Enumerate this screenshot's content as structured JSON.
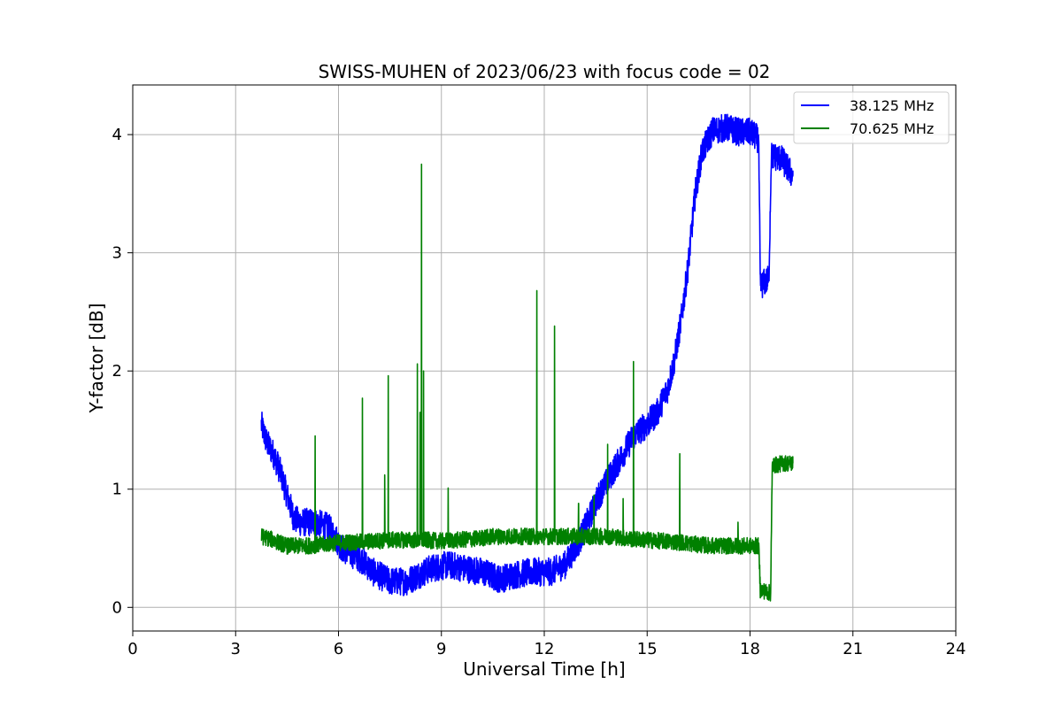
{
  "chart_data": {
    "type": "line",
    "title": "SWISS-MUHEN of 2023/06/23 with focus code = 02",
    "xlabel": "Universal Time [h]",
    "ylabel": "Y-factor [dB]",
    "xlim": [
      0,
      24
    ],
    "ylim": [
      -0.2,
      4.42
    ],
    "xticks": [
      0,
      3,
      6,
      9,
      12,
      15,
      18,
      21,
      24
    ],
    "yticks": [
      0,
      1,
      2,
      3,
      4
    ],
    "grid": true,
    "legend_position": "top-right",
    "series": [
      {
        "name": "38.125 MHz",
        "color": "#0000ff",
        "noise": 0.12,
        "points": [
          [
            3.75,
            1.55
          ],
          [
            3.9,
            1.4
          ],
          [
            4.1,
            1.3
          ],
          [
            4.3,
            1.15
          ],
          [
            4.5,
            0.95
          ],
          [
            4.7,
            0.75
          ],
          [
            4.9,
            0.72
          ],
          [
            5.1,
            0.72
          ],
          [
            5.3,
            0.72
          ],
          [
            5.5,
            0.7
          ],
          [
            5.7,
            0.68
          ],
          [
            5.9,
            0.6
          ],
          [
            6.1,
            0.5
          ],
          [
            6.4,
            0.45
          ],
          [
            6.7,
            0.4
          ],
          [
            7.0,
            0.3
          ],
          [
            7.5,
            0.22
          ],
          [
            8.0,
            0.22
          ],
          [
            8.3,
            0.27
          ],
          [
            8.7,
            0.33
          ],
          [
            9.2,
            0.36
          ],
          [
            9.7,
            0.33
          ],
          [
            10.2,
            0.3
          ],
          [
            10.7,
            0.24
          ],
          [
            11.2,
            0.28
          ],
          [
            11.7,
            0.3
          ],
          [
            12.2,
            0.3
          ],
          [
            12.6,
            0.36
          ],
          [
            13.0,
            0.55
          ],
          [
            13.3,
            0.75
          ],
          [
            13.6,
            0.95
          ],
          [
            14.0,
            1.15
          ],
          [
            14.3,
            1.3
          ],
          [
            14.6,
            1.45
          ],
          [
            15.0,
            1.55
          ],
          [
            15.3,
            1.65
          ],
          [
            15.6,
            1.85
          ],
          [
            15.8,
            2.1
          ],
          [
            16.0,
            2.45
          ],
          [
            16.2,
            2.9
          ],
          [
            16.4,
            3.5
          ],
          [
            16.6,
            3.85
          ],
          [
            16.9,
            4.03
          ],
          [
            17.3,
            4.06
          ],
          [
            17.7,
            4.02
          ],
          [
            18.0,
            4.02
          ],
          [
            18.25,
            3.96
          ],
          [
            18.3,
            2.72
          ],
          [
            18.55,
            2.78
          ],
          [
            18.62,
            3.82
          ],
          [
            18.9,
            3.8
          ],
          [
            19.25,
            3.65
          ]
        ]
      },
      {
        "name": "70.625 MHz",
        "color": "#008000",
        "noise": 0.07,
        "points": [
          [
            3.75,
            0.6
          ],
          [
            4.0,
            0.58
          ],
          [
            4.5,
            0.52
          ],
          [
            5.0,
            0.52
          ],
          [
            5.5,
            0.53
          ],
          [
            6.0,
            0.55
          ],
          [
            6.5,
            0.55
          ],
          [
            7.0,
            0.56
          ],
          [
            7.5,
            0.57
          ],
          [
            8.0,
            0.57
          ],
          [
            8.5,
            0.57
          ],
          [
            9.0,
            0.56
          ],
          [
            9.5,
            0.57
          ],
          [
            10.0,
            0.58
          ],
          [
            10.5,
            0.6
          ],
          [
            11.0,
            0.6
          ],
          [
            11.5,
            0.6
          ],
          [
            12.0,
            0.6
          ],
          [
            12.5,
            0.6
          ],
          [
            13.0,
            0.6
          ],
          [
            13.5,
            0.6
          ],
          [
            14.0,
            0.6
          ],
          [
            14.5,
            0.58
          ],
          [
            15.0,
            0.57
          ],
          [
            15.5,
            0.56
          ],
          [
            16.0,
            0.55
          ],
          [
            16.5,
            0.53
          ],
          [
            17.0,
            0.52
          ],
          [
            17.5,
            0.52
          ],
          [
            18.0,
            0.52
          ],
          [
            18.25,
            0.52
          ],
          [
            18.3,
            0.15
          ],
          [
            18.6,
            0.12
          ],
          [
            18.65,
            1.2
          ],
          [
            19.0,
            1.22
          ],
          [
            19.25,
            1.22
          ]
        ],
        "spikes": [
          [
            5.32,
            1.45
          ],
          [
            6.7,
            1.77
          ],
          [
            7.35,
            1.12
          ],
          [
            7.45,
            1.96
          ],
          [
            8.3,
            2.06
          ],
          [
            8.38,
            1.65
          ],
          [
            8.42,
            3.75
          ],
          [
            8.48,
            2.0
          ],
          [
            9.2,
            1.01
          ],
          [
            11.78,
            2.68
          ],
          [
            12.3,
            2.38
          ],
          [
            13.0,
            0.88
          ],
          [
            13.45,
            0.95
          ],
          [
            13.85,
            1.38
          ],
          [
            14.3,
            0.92
          ],
          [
            14.6,
            2.08
          ],
          [
            15.95,
            1.3
          ],
          [
            17.65,
            0.72
          ]
        ]
      }
    ]
  }
}
